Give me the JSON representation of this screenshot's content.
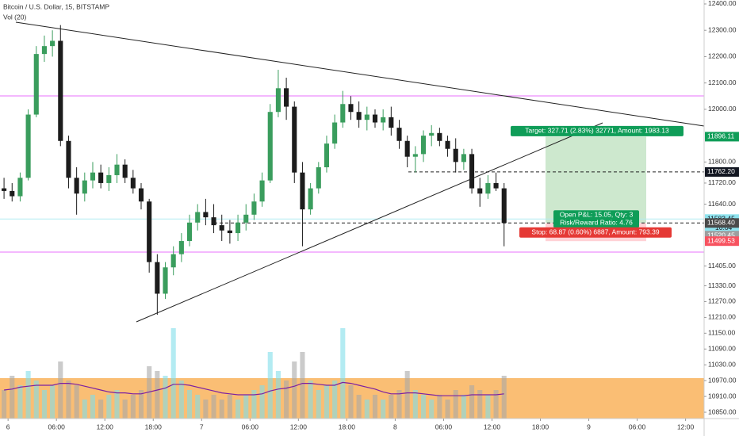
{
  "chart_data": {
    "type": "candlestick",
    "title": "Bitcoin / U.S. Dollar, 15, BITSTAMP",
    "indicator": "Vol (20)",
    "x": [
      -0.5,
      0.5,
      1.5,
      2.5,
      3.5,
      4.5,
      5.5,
      6.5,
      7.5,
      8.5,
      9.5,
      10.5,
      11.5,
      12.5,
      13.5,
      14.5,
      15.5,
      16.5,
      17.5,
      18.5,
      19.5,
      20.5,
      21.5,
      22.5,
      23.5,
      24.5,
      25.5,
      26.5,
      27.5,
      28.5,
      29.5,
      30.5,
      31.5,
      32.5,
      33.5,
      34.5,
      35.5,
      36.5,
      37.5,
      38.5,
      39.5,
      40.5,
      41.5,
      42.5,
      43.5,
      44.5,
      45.5,
      46.5,
      47.5,
      48.5,
      49.5,
      50.5,
      51.5,
      52.5,
      53.5,
      54.5,
      55.5,
      56.5,
      57.5,
      58.5,
      59.5,
      60.5,
      61.5
    ],
    "open": [
      11700,
      11690,
      11670,
      11740,
      11980,
      12210,
      12240,
      12260,
      11880,
      11740,
      11680,
      11730,
      11760,
      11720,
      11750,
      11790,
      11740,
      11700,
      11650,
      11420,
      11300,
      11400,
      11450,
      11500,
      11570,
      11610,
      11590,
      11560,
      11540,
      11530,
      11570,
      11600,
      11650,
      11730,
      11990,
      12080,
      12010,
      11760,
      11620,
      11700,
      11780,
      11870,
      11950,
      12020,
      11990,
      11960,
      11980,
      11950,
      11970,
      11930,
      11880,
      11820,
      11830,
      11900,
      11910,
      11880,
      11850,
      11800,
      11830,
      11700,
      11680,
      11720,
      11700
    ],
    "high": [
      11740,
      11720,
      11760,
      12000,
      12240,
      12280,
      12300,
      12320,
      11900,
      11780,
      11760,
      11800,
      11790,
      11780,
      11830,
      11810,
      11770,
      11720,
      11660,
      11450,
      11420,
      11480,
      11530,
      11600,
      11640,
      11660,
      11640,
      11600,
      11580,
      11600,
      11640,
      11680,
      11760,
      12020,
      12150,
      12120,
      12030,
      11800,
      11720,
      11800,
      11900,
      11980,
      12070,
      12050,
      12030,
      12010,
      12000,
      12000,
      12010,
      11960,
      11900,
      11860,
      11920,
      11940,
      11930,
      11900,
      11890,
      11850,
      11850,
      11740,
      11750,
      11760,
      11720
    ],
    "low": [
      11660,
      11650,
      11650,
      11730,
      11970,
      12180,
      12200,
      11860,
      11700,
      11600,
      11650,
      11700,
      11700,
      11690,
      11720,
      11720,
      11680,
      11620,
      11380,
      11220,
      11280,
      11370,
      11420,
      11480,
      11540,
      11560,
      11530,
      11500,
      11490,
      11500,
      11540,
      11580,
      11630,
      11720,
      11970,
      11960,
      11720,
      11480,
      11600,
      11680,
      11760,
      11850,
      11930,
      11960,
      11930,
      11920,
      11930,
      11920,
      11900,
      11850,
      11780,
      11760,
      11800,
      11860,
      11860,
      11820,
      11760,
      11770,
      11680,
      11630,
      11660,
      11690,
      11480
    ],
    "close": [
      11690,
      11670,
      11740,
      11980,
      12210,
      12240,
      12260,
      11880,
      11740,
      11680,
      11730,
      11760,
      11720,
      11750,
      11790,
      11740,
      11700,
      11650,
      11420,
      11300,
      11400,
      11450,
      11500,
      11570,
      11610,
      11590,
      11560,
      11540,
      11530,
      11570,
      11600,
      11650,
      11730,
      11990,
      12080,
      12010,
      11760,
      11620,
      11700,
      11780,
      11870,
      11950,
      12020,
      11990,
      11960,
      11980,
      11950,
      11970,
      11930,
      11880,
      11820,
      11830,
      11900,
      11910,
      11880,
      11850,
      11800,
      11830,
      11700,
      11680,
      11720,
      11700,
      11568.4
    ],
    "volume": [
      30,
      45,
      35,
      50,
      40,
      30,
      35,
      60,
      40,
      35,
      20,
      25,
      20,
      25,
      30,
      20,
      25,
      30,
      55,
      50,
      45,
      95,
      40,
      30,
      25,
      20,
      25,
      20,
      25,
      20,
      25,
      30,
      35,
      70,
      50,
      40,
      60,
      70,
      40,
      30,
      35,
      40,
      95,
      35,
      25,
      20,
      25,
      20,
      25,
      30,
      50,
      30,
      25,
      20,
      25,
      20,
      30,
      25,
      35,
      30,
      25,
      30,
      45
    ],
    "volume_ma": [
      30,
      31,
      33,
      34,
      35,
      35,
      35,
      37,
      37,
      36,
      34,
      32,
      30,
      28,
      27,
      27,
      26,
      26,
      28,
      30,
      32,
      36,
      36,
      35,
      33,
      31,
      29,
      27,
      26,
      25,
      25,
      25,
      26,
      29,
      31,
      32,
      34,
      37,
      37,
      36,
      35,
      35,
      38,
      37,
      35,
      33,
      31,
      28,
      26,
      26,
      27,
      27,
      26,
      25,
      24,
      24,
      24,
      24,
      25,
      25,
      25,
      25,
      26
    ],
    "vlim": [
      0,
      100
    ],
    "up_color": "#3a9d5d",
    "down_color": "#1c1c1c",
    "volume_up_color": "#80deea",
    "volume_down_color": "#a8a8a8",
    "ma_color": "#7b1fa2",
    "xlim": [
      -1,
      86.3
    ],
    "xticks": [
      {
        "value": 0,
        "label": "6"
      },
      {
        "value": 6,
        "label": "06:00"
      },
      {
        "value": 12,
        "label": "12:00"
      },
      {
        "value": 18,
        "label": "18:00"
      },
      {
        "value": 24,
        "label": "7"
      },
      {
        "value": 30,
        "label": "06:00"
      },
      {
        "value": 36,
        "label": "12:00"
      },
      {
        "value": 42,
        "label": "18:00"
      },
      {
        "value": 48,
        "label": "8"
      },
      {
        "value": 54,
        "label": "06:00"
      },
      {
        "value": 60,
        "label": "12:00"
      },
      {
        "value": 66,
        "label": "18:00"
      },
      {
        "value": 72,
        "label": "9"
      },
      {
        "value": 78,
        "label": "06:00"
      },
      {
        "value": 84,
        "label": "12:00"
      }
    ],
    "ylim": [
      10835,
      12415
    ],
    "yticks": [
      {
        "value": 12400,
        "label": "12400.00"
      },
      {
        "value": 12300,
        "label": "12300.00"
      },
      {
        "value": 12200,
        "label": "12200.00"
      },
      {
        "value": 12100,
        "label": "12100.00"
      },
      {
        "value": 12000,
        "label": "12000.00"
      },
      {
        "value": 11800,
        "label": "11800.00"
      },
      {
        "value": 11720,
        "label": "11720.00"
      },
      {
        "value": 11640,
        "label": "11640.00"
      },
      {
        "value": 11405,
        "label": "11405.00"
      },
      {
        "value": 11330,
        "label": "11330.00"
      },
      {
        "value": 11270,
        "label": "11270.00"
      },
      {
        "value": 11210,
        "label": "11210.00"
      },
      {
        "value": 11150,
        "label": "11150.00"
      },
      {
        "value": 11090,
        "label": "11090.00"
      },
      {
        "value": 11030,
        "label": "11030.00"
      },
      {
        "value": 10970,
        "label": "10970.00"
      },
      {
        "value": 10910,
        "label": "10910.00"
      },
      {
        "value": 10850,
        "label": "10850.00"
      }
    ],
    "price_labels": [
      {
        "value": 11896.11,
        "label": "11896.11",
        "color": "#0f9d58",
        "text_color": "#ffffff"
      },
      {
        "value": 11762.2,
        "label": "11762.20",
        "color": "#131722",
        "text_color": "#ffffff"
      },
      {
        "value": 11583.45,
        "label": "11583.45",
        "color": "#8fe3ee",
        "text_color": "#131722"
      },
      {
        "value": 11520.45,
        "label": "11520.45",
        "color": "#9e9e9e",
        "text_color": "#ffffff"
      },
      {
        "value": 11568.4,
        "label": "11568.40",
        "color": "#4a4a4a",
        "text_color": "#ffffff"
      },
      {
        "value": 11499.53,
        "label": "11499.53",
        "color": "#f7525f",
        "text_color": "#ffffff"
      }
    ],
    "countdown": "10:04",
    "position": {
      "target_text": "Target: 327.71 (2.83%) 32771, Amount: 1983.13",
      "pnl_text": "Open P&L: 15.05, Qty: 3",
      "rr_text": "Risk/Reward Ratio: 4.76",
      "stop_text": "Stop: 68.87 (0.60%) 6887, Amount: 793.39"
    }
  }
}
